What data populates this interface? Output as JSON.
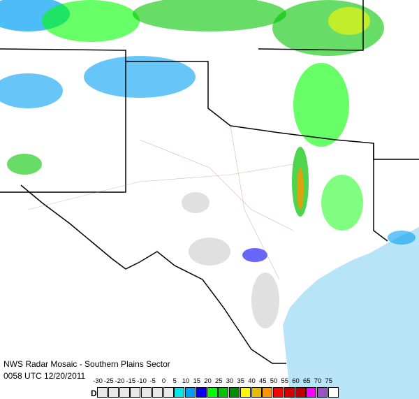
{
  "header": {
    "title": "NWS Radar Mosaic - Southern Plains Sector",
    "timestamp": "0058 UTC 12/20/2011"
  },
  "legend": {
    "unit": "DBZ",
    "labels": [
      "-30",
      "-25",
      "-20",
      "-15",
      "-10",
      "-5",
      "0",
      "5",
      "10",
      "15",
      "20",
      "25",
      "30",
      "35",
      "40",
      "45",
      "50",
      "55",
      "60",
      "65",
      "70",
      "75"
    ],
    "colors": [
      "#e8e8e8",
      "#e8e8e8",
      "#e8e8e8",
      "#e8e8e8",
      "#e8e8e8",
      "#e8e8e8",
      "#e8e8e8",
      "#04e9e7",
      "#019ff4",
      "#0300f4",
      "#02fd02",
      "#01c501",
      "#008e00",
      "#fdf802",
      "#e5bc00",
      "#fd9500",
      "#fd0000",
      "#d40000",
      "#bc0000",
      "#f800fd",
      "#9854c6",
      "#fdfdfd"
    ]
  },
  "map": {
    "ocean_color": "#b8e4f8",
    "land_color": "#ffffff"
  }
}
